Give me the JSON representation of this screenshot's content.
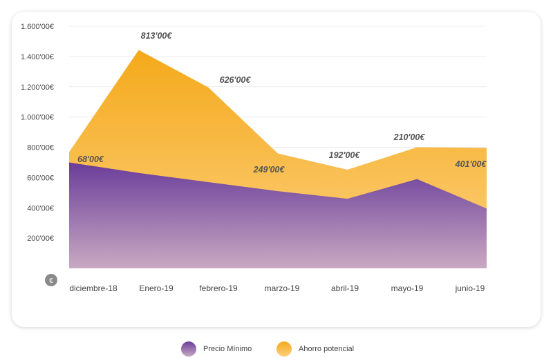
{
  "chart_data": {
    "type": "area",
    "unit_symbol": "€",
    "categories": [
      "diciembre-18",
      "Enero-19",
      "febrero-19",
      "marzo-19",
      "abril-19",
      "mayo-19",
      "junio-19"
    ],
    "y_ticks": [
      {
        "value": 200,
        "label": "200'00€"
      },
      {
        "value": 400,
        "label": "400'00€"
      },
      {
        "value": 600,
        "label": "600'00€"
      },
      {
        "value": 800,
        "label": "800'00€"
      },
      {
        "value": 1000,
        "label": "1.000'00€"
      },
      {
        "value": 1200,
        "label": "1.200'00€"
      },
      {
        "value": 1400,
        "label": "1.400'00€"
      },
      {
        "value": 1600,
        "label": "1.600'00€"
      }
    ],
    "ylim": [
      0,
      1600
    ],
    "series": [
      {
        "name": "Precio Mínimo",
        "values": [
          700,
          630,
          570,
          510,
          460,
          590,
          395
        ],
        "color_top": "#6a3d9a",
        "color_bottom": "#c9a9c2"
      },
      {
        "name": "Ahorro potencial",
        "values": [
          68,
          813,
          626,
          249,
          192,
          210,
          401
        ],
        "labels": [
          "68'00€",
          "813'00€",
          "626'00€",
          "249'00€",
          "192'00€",
          "210'00€",
          "401'00€"
        ],
        "color_top": "#f4a91a",
        "color_bottom": "#fdd07e"
      }
    ],
    "grid": true,
    "legend_position": "bottom-center"
  }
}
